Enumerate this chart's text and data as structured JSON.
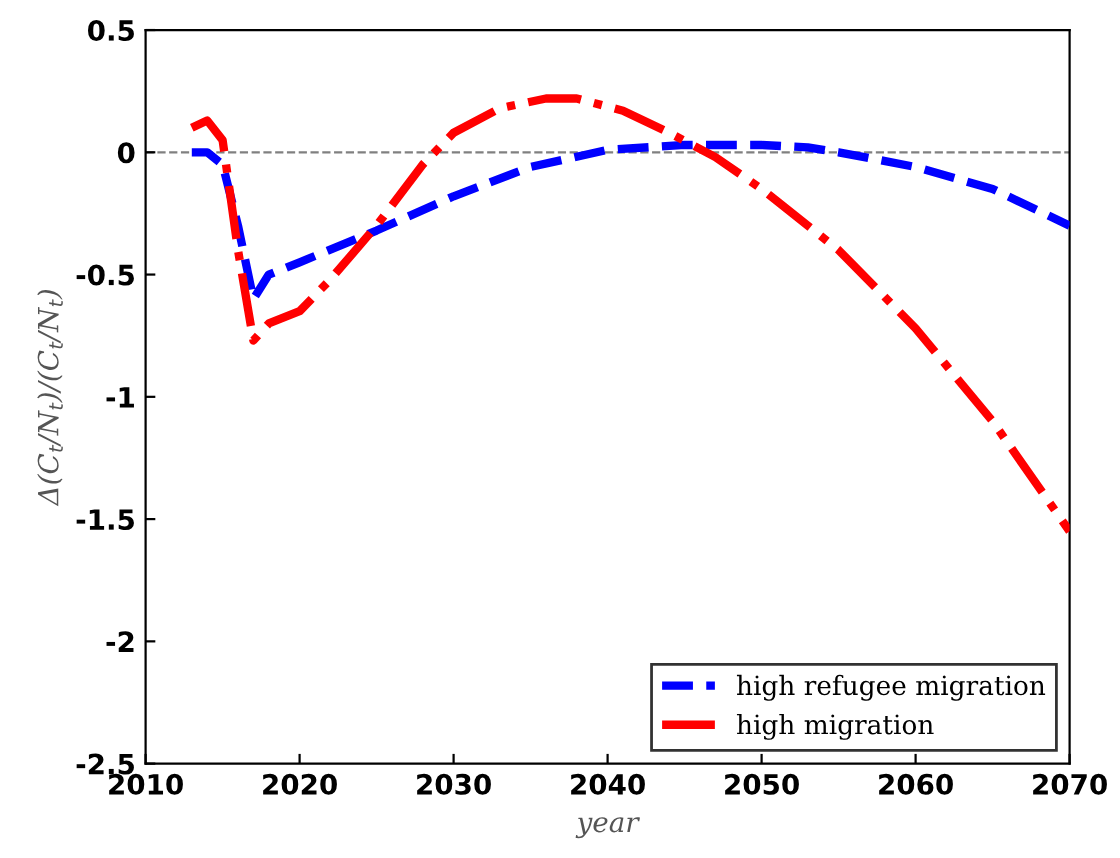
{
  "chart_data": {
    "type": "line",
    "xlabel": "year",
    "ylabel": "Δ(C$_{t}$/N$_{t}$)/(C$_{t}$/N$_{t}$)",
    "xlim": [
      2010,
      2070
    ],
    "xticks": [
      2010,
      2020,
      2030,
      2040,
      2050,
      2060,
      2070
    ],
    "ylim": [
      -2.5,
      0.5
    ],
    "yticks": [
      -2.5,
      -2,
      -1.5,
      -1,
      -0.5,
      0,
      0.5
    ],
    "grid": false,
    "legend": "bottom right",
    "marker": "none",
    "ref_lines": [
      {
        "axis": "y",
        "value": 0,
        "color": "#808080",
        "line_style": "dashed"
      }
    ],
    "series": [
      {
        "name": "high refugee migration",
        "color": "#0000ff",
        "line_style": "dashed",
        "x": [
          2013,
          2014,
          2015,
          2016,
          2017,
          2018,
          2020,
          2025,
          2030,
          2035,
          2040,
          2045,
          2050,
          2053,
          2055,
          2060,
          2065,
          2070
        ],
        "values": [
          0,
          0,
          -0.05,
          -0.3,
          -0.6,
          -0.5,
          -0.45,
          -0.32,
          -0.18,
          -0.06,
          0.01,
          0.03,
          0.03,
          0.02,
          0.0,
          -0.06,
          -0.15,
          -0.3
        ]
      },
      {
        "name": "high migration",
        "color": "#ff0000",
        "line_style": "dashdot",
        "x": [
          2013,
          2014,
          2015,
          2016,
          2017,
          2018,
          2020,
          2022,
          2025,
          2028,
          2030,
          2033,
          2036,
          2038,
          2041,
          2044,
          2047,
          2050,
          2055,
          2060,
          2065,
          2070
        ],
        "values": [
          0.1,
          0.13,
          0.05,
          -0.4,
          -0.77,
          -0.7,
          -0.65,
          -0.52,
          -0.3,
          -0.05,
          0.08,
          0.18,
          0.22,
          0.22,
          0.17,
          0.08,
          -0.02,
          -0.15,
          -0.4,
          -0.72,
          -1.1,
          -1.55
        ]
      }
    ]
  }
}
